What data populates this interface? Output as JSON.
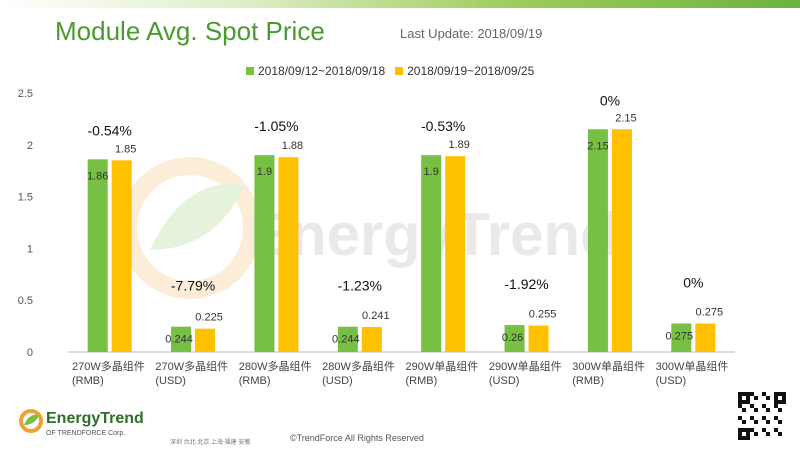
{
  "header": {
    "title": "Module Avg. Spot Price",
    "last_update": "Last Update: 2018/09/19"
  },
  "legend": {
    "series1": "2018/09/12~2018/09/18",
    "series2": "2018/09/19~2018/09/25"
  },
  "watermark": "EnergyTrend",
  "footer": {
    "logo": "EnergyTrend",
    "logo_sub": "OF TRENDFORCE Corp.",
    "cities": "深圳  台北  北京  上海  福建  安徽",
    "copyright": "©TrendForce All Rights Reserved"
  },
  "colors": {
    "series1": "#77c043",
    "series2": "#ffc000",
    "title": "#4a9a2e"
  },
  "chart_data": {
    "type": "bar",
    "ylim": [
      0,
      2.5
    ],
    "yticks": [
      "0",
      "0.5",
      "1",
      "1.5",
      "2",
      "2.5"
    ],
    "categories": [
      [
        "270W多晶组件",
        "(RMB)"
      ],
      [
        "270W多晶组件",
        "(USD)"
      ],
      [
        "280W多晶组件",
        "(RMB)"
      ],
      [
        "280W多晶组件",
        "(USD)"
      ],
      [
        "290W单晶组件",
        "(RMB)"
      ],
      [
        "290W单晶组件",
        "(USD)"
      ],
      [
        "300W单晶组件",
        "(RMB)"
      ],
      [
        "300W单晶组件",
        "(USD)"
      ]
    ],
    "series": [
      {
        "name": "2018/09/12~2018/09/18",
        "values": [
          1.86,
          0.244,
          1.9,
          0.244,
          1.9,
          0.26,
          2.15,
          0.275
        ]
      },
      {
        "name": "2018/09/19~2018/09/25",
        "values": [
          1.85,
          0.225,
          1.88,
          0.241,
          1.89,
          0.255,
          2.15,
          0.275
        ]
      }
    ],
    "value_labels": [
      [
        "1.86",
        "0.244",
        "1.9",
        "0.244",
        "1.9",
        "0.26",
        "2.15",
        "0.275"
      ],
      [
        "1.85",
        "0.225",
        "1.88",
        "0.241",
        "1.89",
        "0.255",
        "2.15",
        "0.275"
      ]
    ],
    "changes": [
      "-0.54%",
      "-7.79%",
      "-1.05%",
      "-1.23%",
      "-0.53%",
      "-1.92%",
      "0%",
      "0%"
    ],
    "legend_position": "top",
    "grid": false
  }
}
